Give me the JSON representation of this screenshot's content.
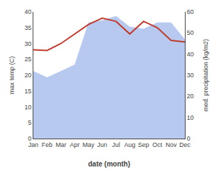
{
  "chart_data": {
    "type": "line",
    "xlabel": "date (month)",
    "ylabel": "max temp (C)",
    "y2label": "med. precipitation (kg/m2)",
    "categories": [
      "Jan",
      "Feb",
      "Mar",
      "Apr",
      "May",
      "Jun",
      "Jul",
      "Aug",
      "Sep",
      "Oct",
      "Nov",
      "Dec"
    ],
    "series": [
      {
        "type": "area",
        "color": "#b8c9f0",
        "axis": "y2",
        "values": [
          32,
          29,
          32,
          35,
          55,
          56,
          58,
          53,
          52,
          55,
          55,
          47
        ]
      },
      {
        "type": "line",
        "color": "#c0392b",
        "values": [
          28,
          27.8,
          30,
          33,
          36,
          38,
          37,
          33,
          37,
          35,
          31,
          30.5
        ]
      }
    ],
    "ylim": [
      0,
      40
    ],
    "yticks": [
      0,
      5,
      10,
      15,
      20,
      25,
      30,
      35,
      40
    ],
    "y2lim": [
      0,
      60
    ],
    "y2ticks": [
      0,
      10,
      20,
      30,
      40,
      50,
      60
    ],
    "grid": false
  }
}
